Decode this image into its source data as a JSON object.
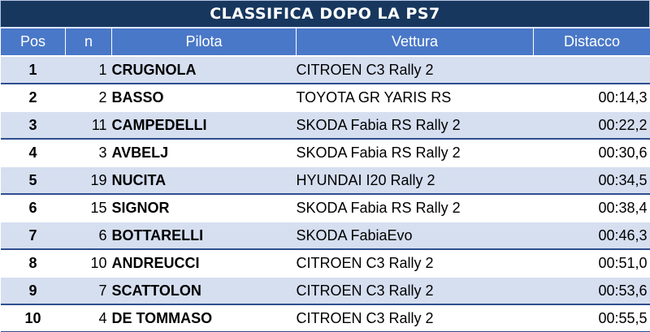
{
  "title": "CLASSIFICA DOPO LA PS7",
  "headers": {
    "pos": "Pos",
    "n": "n",
    "pilota": "Pilota",
    "vettura": "Vettura",
    "distacco": "Distacco"
  },
  "rows": [
    {
      "pos": "1",
      "n": "1",
      "pilota": "CRUGNOLA",
      "vettura": "CITROEN C3 Rally 2",
      "distacco": ""
    },
    {
      "pos": "2",
      "n": "2",
      "pilota": "BASSO",
      "vettura": "TOYOTA GR YARIS RS",
      "distacco": "00:14,3"
    },
    {
      "pos": "3",
      "n": "11",
      "pilota": "CAMPEDELLI",
      "vettura": "SKODA Fabia RS Rally 2",
      "distacco": "00:22,2"
    },
    {
      "pos": "4",
      "n": "3",
      "pilota": "AVBELJ",
      "vettura": "SKODA Fabia RS Rally 2",
      "distacco": "00:30,6"
    },
    {
      "pos": "5",
      "n": "19",
      "pilota": "NUCITA",
      "vettura": "HYUNDAI I20 Rally 2",
      "distacco": "00:34,5"
    },
    {
      "pos": "6",
      "n": "15",
      "pilota": "SIGNOR",
      "vettura": "SKODA Fabia RS Rally 2",
      "distacco": "00:38,4"
    },
    {
      "pos": "7",
      "n": "6",
      "pilota": "BOTTARELLI",
      "vettura": "SKODA FabiaEvo",
      "distacco": "00:46,3"
    },
    {
      "pos": "8",
      "n": "10",
      "pilota": "ANDREUCCI",
      "vettura": "CITROEN C3 Rally 2",
      "distacco": "00:51,0"
    },
    {
      "pos": "9",
      "n": "7",
      "pilota": "SCATTOLON",
      "vettura": "CITROEN C3 Rally 2",
      "distacco": "00:53,6"
    },
    {
      "pos": "10",
      "n": "4",
      "pilota": "DE TOMMASO",
      "vettura": "CITROEN C3 Rally 2",
      "distacco": "00:55,5"
    }
  ],
  "colors": {
    "title_bg": "#17375e",
    "header_bg": "#4a78c8",
    "row_alt": "#d6dff0"
  }
}
